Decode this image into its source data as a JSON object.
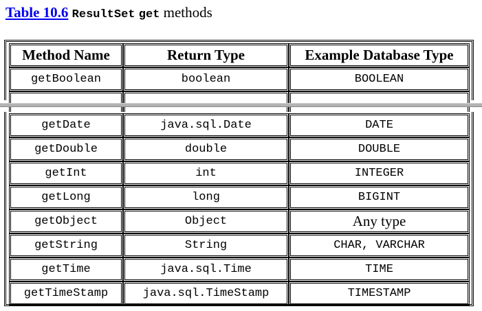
{
  "caption": {
    "table_number": "Table 10.6",
    "class_name": "ResultSet",
    "method_word": "get",
    "suffix": "methods"
  },
  "table": {
    "headers": [
      "Method Name",
      "Return Type",
      "Example Database Type"
    ],
    "rows_top": [
      [
        "getBoolean",
        "boolean",
        "BOOLEAN"
      ]
    ],
    "rows_bottom": [
      [
        "getDate",
        "java.sql.Date",
        "DATE"
      ],
      [
        "getDouble",
        "double",
        "DOUBLE"
      ],
      [
        "getInt",
        "int",
        "INTEGER"
      ],
      [
        "getLong",
        "long",
        "BIGINT"
      ],
      [
        "getObject",
        "Object",
        "Any type"
      ],
      [
        "getString",
        "String",
        "CHAR, VARCHAR"
      ],
      [
        "getTime",
        "java.sql.Time",
        "TIME"
      ],
      [
        "getTimeStamp",
        "java.sql.TimeStamp",
        "TIMESTAMP"
      ]
    ]
  }
}
